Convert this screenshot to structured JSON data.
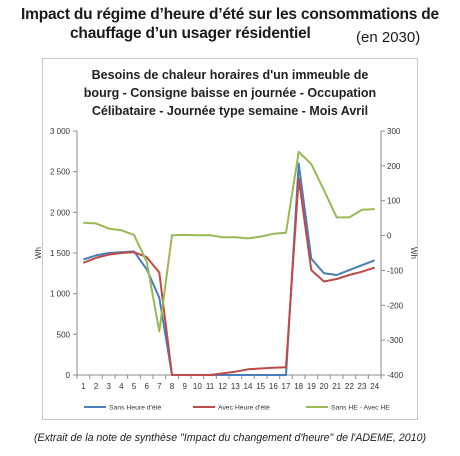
{
  "header": {
    "line1": "Impact du régime d’heure d’été sur les consommations de",
    "line2": "chauffage d’un usager résidentiel",
    "note": "(en 2030)"
  },
  "caption": "(Extrait de la note de synthèse \"Impact du changement d'heure\" de l'ADEME, 2010)",
  "chart_data": {
    "type": "line",
    "title_lines": [
      "Besoins de chaleur horaires d'un immeuble de",
      "bourg - Consigne baisse en journée - Occupation",
      "Célibataire - Journée type semaine - Mois Avril"
    ],
    "x": [
      1,
      2,
      3,
      4,
      5,
      6,
      7,
      8,
      9,
      10,
      11,
      12,
      13,
      14,
      15,
      16,
      17,
      18,
      19,
      20,
      21,
      22,
      23,
      24
    ],
    "ylabel": "Wh",
    "y2label": "Wh",
    "ylim": [
      0,
      3000
    ],
    "y2lim": [
      -400,
      300
    ],
    "yticks": [
      "0",
      "500",
      "1 000",
      "1 500",
      "2 000",
      "2 500",
      "3 000"
    ],
    "y2ticks": [
      "-400",
      "-300",
      "-200",
      "-100",
      "0",
      "100",
      "200",
      "300"
    ],
    "grid": false,
    "legend_position": "bottom",
    "series": [
      {
        "name": "Sans Heure d'été",
        "axis": "left",
        "color": "#4a7ebb",
        "values": [
          1420,
          1470,
          1500,
          1510,
          1520,
          1300,
          950,
          0,
          0,
          0,
          0,
          0,
          0,
          0,
          0,
          0,
          0,
          2600,
          1430,
          1250,
          1230,
          1290,
          1350,
          1410
        ]
      },
      {
        "name": "Avec Heure d'été",
        "axis": "left",
        "color": "#be4b48",
        "values": [
          1380,
          1440,
          1480,
          1500,
          1510,
          1450,
          1260,
          0,
          0,
          0,
          0,
          20,
          40,
          70,
          80,
          90,
          95,
          2420,
          1290,
          1150,
          1180,
          1230,
          1270,
          1320
        ]
      },
      {
        "name": "Sans HE - Avec HE",
        "axis": "right",
        "color": "#98b954",
        "values": [
          37,
          35,
          20,
          15,
          2,
          -75,
          -275,
          1,
          2,
          1,
          1,
          -5,
          -5,
          -8,
          -3,
          5,
          8,
          240,
          205,
          130,
          52,
          52,
          74,
          76
        ]
      }
    ]
  }
}
